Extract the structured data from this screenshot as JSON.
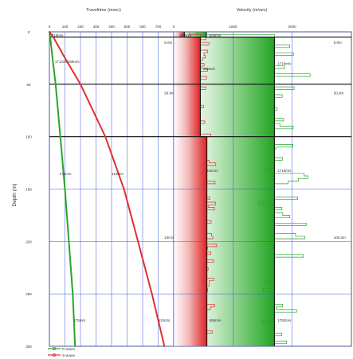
{
  "chart_data": [
    {
      "type": "line",
      "title": "Traveltime (msec)",
      "ylabel": "Depth (m)",
      "xlim": [
        0,
        800
      ],
      "ylim": [
        300,
        0
      ],
      "x_ticks": [
        "0",
        "100",
        "200",
        "300",
        "400",
        "500",
        "600",
        "700"
      ],
      "y_ticks": [
        "0",
        "50",
        "100",
        "150",
        "200",
        "250",
        "300"
      ],
      "grid": true,
      "series": [
        {
          "name": "P-wave",
          "color": "#2aa52a",
          "points": [
            [
              0,
              0
            ],
            [
              5,
              5
            ],
            [
              20,
              25
            ],
            [
              40,
              50
            ],
            [
              70,
              100
            ],
            [
              100,
              150
            ],
            [
              125,
              200
            ],
            [
              150,
              250
            ],
            [
              165,
              300
            ]
          ]
        },
        {
          "name": "S-wave",
          "color": "#e03030",
          "points": [
            [
              0,
              0
            ],
            [
              25,
              5
            ],
            [
              100,
              25
            ],
            [
              200,
              50
            ],
            [
              360,
              100
            ],
            [
              480,
              150
            ],
            [
              570,
              200
            ],
            [
              660,
              250
            ],
            [
              740,
              300
            ]
          ]
        }
      ],
      "annotations": [
        {
          "text": "118m/s",
          "x": 15,
          "y": 3
        },
        {
          "text": "5.0m",
          "x": 740,
          "y": 10
        },
        {
          "text": "171m/s 258m/s",
          "x": 35,
          "y": 28
        },
        {
          "text": "50.0m",
          "x": 740,
          "y": 58
        },
        {
          "text": "171m/s",
          "x": 65,
          "y": 135
        },
        {
          "text": "418m/s",
          "x": 400,
          "y": 135
        },
        {
          "text": "100.0m",
          "x": 740,
          "y": 196
        },
        {
          "text": "175m/s",
          "x": 155,
          "y": 275
        },
        {
          "text": "510m/s",
          "x": 700,
          "y": 275
        }
      ]
    },
    {
      "type": "area",
      "title": "Velocity (m/sec)",
      "xlim": [
        0,
        3000
      ],
      "ylim": [
        300,
        0
      ],
      "x_ticks": [
        "0",
        "1000",
        "2000"
      ],
      "grid": true,
      "layers": [
        {
          "top": 0,
          "bottom": 5,
          "vs": 180,
          "vp": 550
        },
        {
          "top": 5,
          "bottom": 50,
          "vs": 450,
          "vp": 1700
        },
        {
          "top": 50,
          "bottom": 100,
          "vs": 450,
          "vp": 1700
        },
        {
          "top": 100,
          "bottom": 300,
          "vs": 560,
          "vp": 1700
        }
      ],
      "annotations": [
        {
          "text": "235m/s",
          "x": 100,
          "y": 3
        },
        {
          "text": "608m/s",
          "x": 600,
          "y": 3
        },
        {
          "text": "5.0m",
          "x": 2700,
          "y": 10
        },
        {
          "text": "258m/s",
          "x": 500,
          "y": 35
        },
        {
          "text": "1719m/s",
          "x": 1750,
          "y": 30
        },
        {
          "text": "50.0m",
          "x": 2700,
          "y": 58
        },
        {
          "text": "400m/s",
          "x": 550,
          "y": 132
        },
        {
          "text": "1719m/s",
          "x": 1750,
          "y": 132
        },
        {
          "text": "100.0m",
          "x": 2700,
          "y": 196
        },
        {
          "text": "558m/s",
          "x": 600,
          "y": 275
        },
        {
          "text": "1753m/s",
          "x": 1750,
          "y": 275
        }
      ]
    }
  ],
  "legend": [
    {
      "label": "P-wave",
      "color": "#2aa52a"
    },
    {
      "label": "S-wave",
      "color": "#e03030"
    }
  ]
}
